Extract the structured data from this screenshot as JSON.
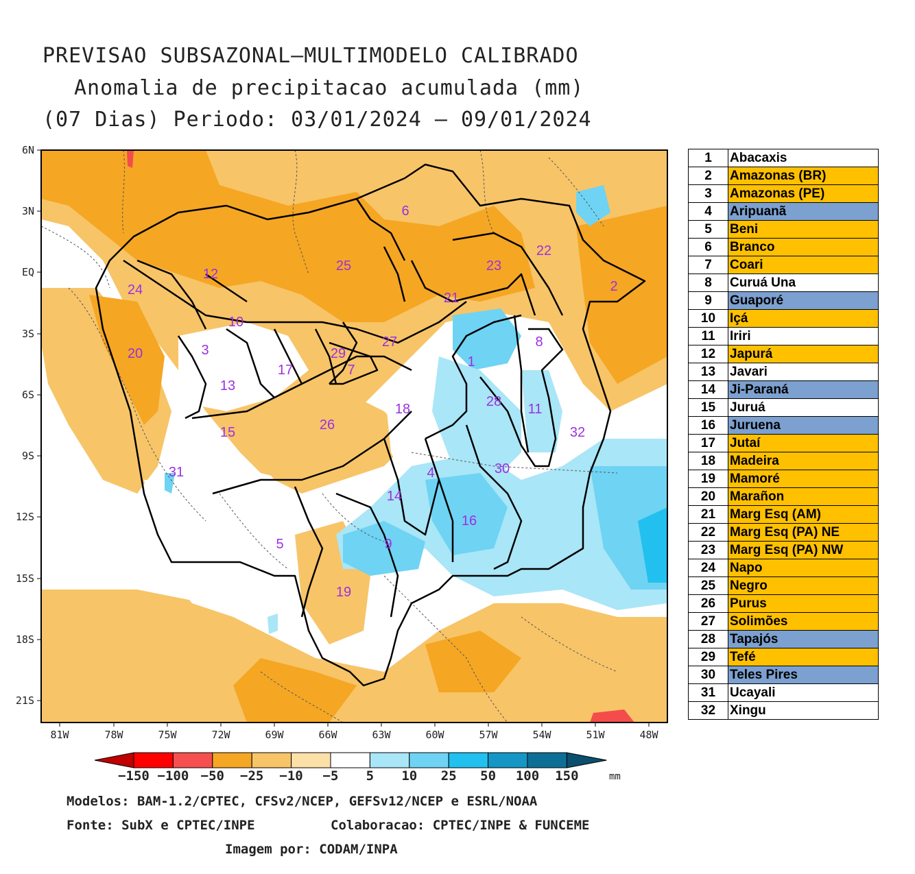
{
  "title": {
    "line1": "PREVISAO SUBSAZONAL—MULTIMODELO CALIBRADO",
    "line2": "Anomalia de precipitacao acumulada (mm)",
    "line3": "(07 Dias) Periodo: 03/01/2024 — 09/01/2024"
  },
  "map": {
    "lat_labels": [
      "6N",
      "3N",
      "EQ",
      "3S",
      "6S",
      "9S",
      "12S",
      "15S",
      "18S",
      "21S"
    ],
    "lon_labels": [
      "81W",
      "78W",
      "75W",
      "72W",
      "69W",
      "66W",
      "63W",
      "60W",
      "57W",
      "54W",
      "51W",
      "48W"
    ],
    "basin_labels": [
      "1",
      "2",
      "3",
      "4",
      "5",
      "6",
      "7",
      "8",
      "9",
      "10",
      "11",
      "12",
      "13",
      "14",
      "15",
      "16",
      "17",
      "18",
      "19",
      "20",
      "21",
      "22",
      "23",
      "24",
      "25",
      "26",
      "27",
      "28",
      "29",
      "30",
      "31",
      "32"
    ],
    "colors": {
      "orange_dark": "#f5a623",
      "orange_light": "#f7c468",
      "cream": "#fbe0a8",
      "blue_light": "#a9e6f7",
      "blue_mid": "#6fd3f3",
      "blue": "#22c0ee",
      "red": "#f44b4b",
      "label": "#9b30e0"
    }
  },
  "colorbar": {
    "labels": [
      "-150",
      "-100",
      "-50",
      "-25",
      "-10",
      "-5",
      "5",
      "10",
      "25",
      "50",
      "100",
      "150"
    ],
    "unit": "mm",
    "colors": [
      "#c00000",
      "#ff0000",
      "#f5504f",
      "#f5a623",
      "#f7c468",
      "#fbe0a8",
      "#ffffff",
      "#a9e6f7",
      "#6fd3f3",
      "#22c0ee",
      "#1596c4",
      "#0e6f96",
      "#0b4f6e"
    ]
  },
  "legend": [
    {
      "n": "1",
      "name": "Abacaxis",
      "cls": "c-white"
    },
    {
      "n": "2",
      "name": "Amazonas (BR)",
      "cls": "c-orange"
    },
    {
      "n": "3",
      "name": "Amazonas (PE)",
      "cls": "c-orange"
    },
    {
      "n": "4",
      "name": "Aripuanã",
      "cls": "c-blue"
    },
    {
      "n": "5",
      "name": "Beni",
      "cls": "c-orange"
    },
    {
      "n": "6",
      "name": "Branco",
      "cls": "c-orange"
    },
    {
      "n": "7",
      "name": "Coari",
      "cls": "c-orange"
    },
    {
      "n": "8",
      "name": "Curuá Una",
      "cls": "c-white"
    },
    {
      "n": "9",
      "name": "Guaporé",
      "cls": "c-blue"
    },
    {
      "n": "10",
      "name": "Içá",
      "cls": "c-orange"
    },
    {
      "n": "11",
      "name": "Iriri",
      "cls": "c-white"
    },
    {
      "n": "12",
      "name": "Japurá",
      "cls": "c-orange"
    },
    {
      "n": "13",
      "name": "Javari",
      "cls": "c-white"
    },
    {
      "n": "14",
      "name": "Ji-Paraná",
      "cls": "c-blue"
    },
    {
      "n": "15",
      "name": "Juruá",
      "cls": "c-white"
    },
    {
      "n": "16",
      "name": "Juruena",
      "cls": "c-blue"
    },
    {
      "n": "17",
      "name": "Jutaí",
      "cls": "c-orange"
    },
    {
      "n": "18",
      "name": "Madeira",
      "cls": "c-orange"
    },
    {
      "n": "19",
      "name": "Mamoré",
      "cls": "c-orange"
    },
    {
      "n": "20",
      "name": "Marañon",
      "cls": "c-orange"
    },
    {
      "n": "21",
      "name": "Marg Esq (AM)",
      "cls": "c-orange"
    },
    {
      "n": "22",
      "name": "Marg Esq (PA) NE",
      "cls": "c-orange"
    },
    {
      "n": "23",
      "name": "Marg Esq (PA) NW",
      "cls": "c-orange"
    },
    {
      "n": "24",
      "name": "Napo",
      "cls": "c-orange"
    },
    {
      "n": "25",
      "name": "Negro",
      "cls": "c-orange"
    },
    {
      "n": "26",
      "name": "Purus",
      "cls": "c-orange"
    },
    {
      "n": "27",
      "name": "Solimões",
      "cls": "c-orange"
    },
    {
      "n": "28",
      "name": "Tapajós",
      "cls": "c-blue"
    },
    {
      "n": "29",
      "name": "Tefé",
      "cls": "c-orange"
    },
    {
      "n": "30",
      "name": "Teles Pires",
      "cls": "c-blue"
    },
    {
      "n": "31",
      "name": "Ucayali",
      "cls": "c-white"
    },
    {
      "n": "32",
      "name": "Xingu",
      "cls": "c-white"
    }
  ],
  "footer": {
    "models": "Modelos: BAM-1.2/CPTEC, CFSv2/NCEP, GEFSv12/NCEP e ESRL/NOAA",
    "source": "Fonte: SubX e CPTEC/INPE",
    "collab": "Colaboracao: CPTEC/INPE & FUNCEME",
    "image_by": "Imagem por: CODAM/INPA"
  }
}
